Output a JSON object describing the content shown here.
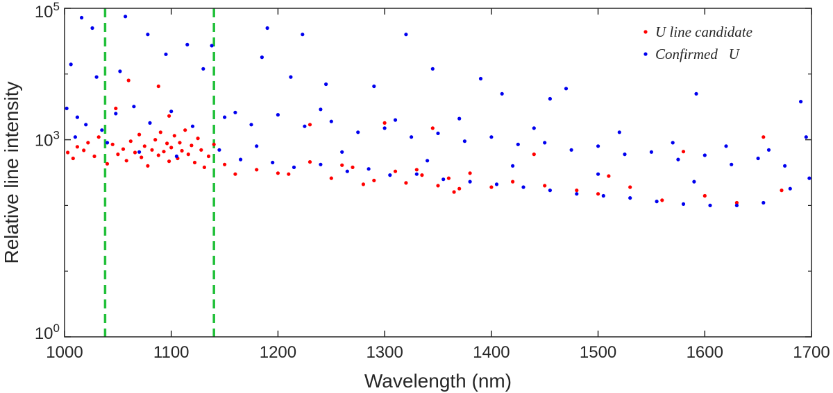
{
  "chart_data": {
    "type": "scatter",
    "title": "",
    "xlabel": "Wavelength (nm)",
    "ylabel": "Relative line intensity",
    "xlim": [
      1000,
      1700
    ],
    "ylim": [
      1,
      100000
    ],
    "yscale": "log",
    "x_ticks": [
      {
        "value": 1000,
        "label": "1000"
      },
      {
        "value": 1100,
        "label": "1100"
      },
      {
        "value": 1200,
        "label": "1200"
      },
      {
        "value": 1300,
        "label": "1300"
      },
      {
        "value": 1400,
        "label": "1400"
      },
      {
        "value": 1500,
        "label": "1500"
      },
      {
        "value": 1600,
        "label": "1600"
      },
      {
        "value": 1700,
        "label": "1700"
      }
    ],
    "y_ticks": [
      {
        "value": 1,
        "base": "10",
        "exp": "0"
      },
      {
        "value": 1000,
        "base": "10",
        "exp": "3"
      },
      {
        "value": 100000,
        "base": "10",
        "exp": "5"
      }
    ],
    "y_minor_ticks": [
      10,
      100,
      10000
    ],
    "vlines": [
      {
        "x": 1038,
        "color": "#22c03a",
        "style": "dashed"
      },
      {
        "x": 1140,
        "color": "#22c03a",
        "style": "dashed"
      }
    ],
    "legend_position": "top-right",
    "series": [
      {
        "name": "U line candidate",
        "color": "#ff0000",
        "points": [
          [
            1003,
            640
          ],
          [
            1008,
            520
          ],
          [
            1012,
            780
          ],
          [
            1018,
            690
          ],
          [
            1022,
            900
          ],
          [
            1028,
            560
          ],
          [
            1032,
            1100
          ],
          [
            1040,
            430
          ],
          [
            1045,
            850
          ],
          [
            1050,
            600
          ],
          [
            1055,
            720
          ],
          [
            1058,
            480
          ],
          [
            1062,
            950
          ],
          [
            1066,
            640
          ],
          [
            1070,
            1200
          ],
          [
            1072,
            540
          ],
          [
            1075,
            800
          ],
          [
            1078,
            400
          ],
          [
            1082,
            700
          ],
          [
            1085,
            1000
          ],
          [
            1088,
            580
          ],
          [
            1090,
            1300
          ],
          [
            1093,
            660
          ],
          [
            1096,
            880
          ],
          [
            1098,
            470
          ],
          [
            1100,
            760
          ],
          [
            1103,
            1150
          ],
          [
            1106,
            520
          ],
          [
            1108,
            900
          ],
          [
            1110,
            680
          ],
          [
            1113,
            1400
          ],
          [
            1116,
            600
          ],
          [
            1119,
            820
          ],
          [
            1122,
            450
          ],
          [
            1125,
            1050
          ],
          [
            1128,
            700
          ],
          [
            1131,
            380
          ],
          [
            1135,
            560
          ],
          [
            1060,
            8000
          ],
          [
            1088,
            6500
          ],
          [
            1098,
            2300
          ],
          [
            1048,
            3000
          ],
          [
            1150,
            420
          ],
          [
            1180,
            350
          ],
          [
            1210,
            300
          ],
          [
            1230,
            460
          ],
          [
            1250,
            260
          ],
          [
            1270,
            380
          ],
          [
            1290,
            240
          ],
          [
            1310,
            330
          ],
          [
            1320,
            220
          ],
          [
            1335,
            290
          ],
          [
            1350,
            200
          ],
          [
            1360,
            260
          ],
          [
            1370,
            180
          ],
          [
            1380,
            310
          ],
          [
            1300,
            1800
          ],
          [
            1345,
            1500
          ],
          [
            1230,
            1700
          ],
          [
            1420,
            230
          ],
          [
            1450,
            200
          ],
          [
            1480,
            170
          ],
          [
            1500,
            150
          ],
          [
            1510,
            280
          ],
          [
            1530,
            190
          ],
          [
            1560,
            120
          ],
          [
            1580,
            660
          ],
          [
            1600,
            140
          ],
          [
            1630,
            110
          ],
          [
            1655,
            1100
          ],
          [
            1672,
            170
          ],
          [
            1140,
            850
          ],
          [
            1160,
            300
          ],
          [
            1200,
            310
          ],
          [
            1260,
            410
          ],
          [
            1280,
            210
          ],
          [
            1330,
            350
          ],
          [
            1365,
            160
          ],
          [
            1400,
            190
          ],
          [
            1440,
            600
          ]
        ]
      },
      {
        "name": "Confirmed   U",
        "color": "#0000ee",
        "points": [
          [
            1016,
            72000
          ],
          [
            1026,
            50000
          ],
          [
            1057,
            75000
          ],
          [
            1078,
            40000
          ],
          [
            1115,
            28000
          ],
          [
            1138,
            27000
          ],
          [
            1190,
            50000
          ],
          [
            1223,
            40000
          ],
          [
            1320,
            40000
          ],
          [
            1006,
            14000
          ],
          [
            1030,
            9000
          ],
          [
            1052,
            11000
          ],
          [
            1095,
            20000
          ],
          [
            1130,
            12000
          ],
          [
            1185,
            18000
          ],
          [
            1212,
            9000
          ],
          [
            1245,
            7000
          ],
          [
            1290,
            6500
          ],
          [
            1345,
            12000
          ],
          [
            1390,
            8500
          ],
          [
            1410,
            5000
          ],
          [
            1455,
            4200
          ],
          [
            1470,
            6000
          ],
          [
            1592,
            5000
          ],
          [
            1690,
            3800
          ],
          [
            1002,
            3000
          ],
          [
            1012,
            2200
          ],
          [
            1020,
            1700
          ],
          [
            1035,
            1400
          ],
          [
            1048,
            2500
          ],
          [
            1065,
            3200
          ],
          [
            1080,
            1800
          ],
          [
            1100,
            2700
          ],
          [
            1120,
            1600
          ],
          [
            1150,
            2200
          ],
          [
            1175,
            1700
          ],
          [
            1200,
            2400
          ],
          [
            1225,
            1600
          ],
          [
            1250,
            1900
          ],
          [
            1275,
            1300
          ],
          [
            1300,
            1500
          ],
          [
            1325,
            1100
          ],
          [
            1350,
            1250
          ],
          [
            1375,
            950
          ],
          [
            1400,
            1100
          ],
          [
            1425,
            850
          ],
          [
            1450,
            900
          ],
          [
            1475,
            700
          ],
          [
            1500,
            800
          ],
          [
            1525,
            600
          ],
          [
            1550,
            650
          ],
          [
            1575,
            500
          ],
          [
            1600,
            580
          ],
          [
            1625,
            420
          ],
          [
            1650,
            520
          ],
          [
            1675,
            400
          ],
          [
            1695,
            1100
          ],
          [
            1010,
            1100
          ],
          [
            1040,
            900
          ],
          [
            1070,
            650
          ],
          [
            1105,
            560
          ],
          [
            1145,
            700
          ],
          [
            1165,
            500
          ],
          [
            1195,
            450
          ],
          [
            1215,
            380
          ],
          [
            1240,
            420
          ],
          [
            1265,
            330
          ],
          [
            1285,
            360
          ],
          [
            1305,
            290
          ],
          [
            1330,
            300
          ],
          [
            1355,
            250
          ],
          [
            1380,
            230
          ],
          [
            1405,
            210
          ],
          [
            1430,
            190
          ],
          [
            1455,
            170
          ],
          [
            1480,
            150
          ],
          [
            1505,
            140
          ],
          [
            1530,
            130
          ],
          [
            1555,
            115
          ],
          [
            1580,
            105
          ],
          [
            1605,
            100
          ],
          [
            1630,
            100
          ],
          [
            1655,
            110
          ],
          [
            1680,
            180
          ],
          [
            1698,
            260
          ],
          [
            1160,
            2600
          ],
          [
            1240,
            2900
          ],
          [
            1310,
            2000
          ],
          [
            1370,
            2100
          ],
          [
            1440,
            1500
          ],
          [
            1520,
            1300
          ],
          [
            1570,
            900
          ],
          [
            1620,
            800
          ],
          [
            1660,
            700
          ],
          [
            1180,
            800
          ],
          [
            1260,
            650
          ],
          [
            1340,
            480
          ],
          [
            1420,
            400
          ],
          [
            1500,
            300
          ],
          [
            1590,
            230
          ]
        ]
      }
    ]
  }
}
